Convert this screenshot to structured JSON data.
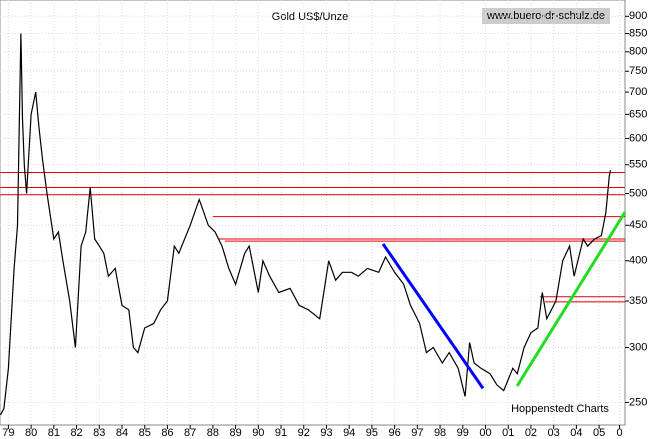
{
  "chart_data": {
    "type": "line",
    "title": "Gold US$/Unze",
    "source": "www.buero-dr-schulz.de",
    "credit": "Hoppenstedt Charts",
    "log_y": true,
    "grid": true,
    "xlim": [
      1979.13,
      2006.64
    ],
    "ylim": [
      232,
      950
    ],
    "xticks": [
      {
        "value": 1979.5,
        "label": "79"
      },
      {
        "value": 1980.5,
        "label": "80"
      },
      {
        "value": 1981.5,
        "label": "81"
      },
      {
        "value": 1982.5,
        "label": "82"
      },
      {
        "value": 1983.5,
        "label": "83"
      },
      {
        "value": 1984.5,
        "label": "84"
      },
      {
        "value": 1985.5,
        "label": "85"
      },
      {
        "value": 1986.5,
        "label": "86"
      },
      {
        "value": 1987.5,
        "label": "87"
      },
      {
        "value": 1988.5,
        "label": "88"
      },
      {
        "value": 1989.5,
        "label": "89"
      },
      {
        "value": 1990.5,
        "label": "90"
      },
      {
        "value": 1991.5,
        "label": "91"
      },
      {
        "value": 1992.5,
        "label": "92"
      },
      {
        "value": 1993.5,
        "label": "93"
      },
      {
        "value": 1994.5,
        "label": "94"
      },
      {
        "value": 1995.5,
        "label": "95"
      },
      {
        "value": 1996.5,
        "label": "96"
      },
      {
        "value": 1997.5,
        "label": "97"
      },
      {
        "value": 1998.5,
        "label": "98"
      },
      {
        "value": 1999.5,
        "label": "99"
      },
      {
        "value": 2000.5,
        "label": "00"
      },
      {
        "value": 2001.5,
        "label": "01"
      },
      {
        "value": 2002.5,
        "label": "02"
      },
      {
        "value": 2003.5,
        "label": "03"
      },
      {
        "value": 2004.5,
        "label": "04"
      },
      {
        "value": 2005.5,
        "label": "05"
      },
      {
        "value": 2006.4,
        "label": "0"
      }
    ],
    "yticks": [
      250,
      300,
      350,
      400,
      450,
      500,
      550,
      600,
      650,
      700,
      750,
      800,
      850,
      900
    ],
    "series": [
      {
        "color": "#000000",
        "x": [
          1979.15,
          1979.3,
          1979.5,
          1979.75,
          1979.9,
          1980.05,
          1980.12,
          1980.2,
          1980.3,
          1980.5,
          1980.7,
          1980.85,
          1981.0,
          1981.2,
          1981.5,
          1981.7,
          1981.9,
          1982.2,
          1982.45,
          1982.7,
          1982.9,
          1983.1,
          1983.3,
          1983.5,
          1983.7,
          1983.9,
          1984.2,
          1984.5,
          1984.8,
          1985.0,
          1985.2,
          1985.5,
          1985.9,
          1986.2,
          1986.5,
          1986.8,
          1987.0,
          1987.5,
          1987.9,
          1988.0,
          1988.3,
          1988.6,
          1988.9,
          1989.2,
          1989.5,
          1989.9,
          1990.1,
          1990.5,
          1990.7,
          1991.0,
          1991.4,
          1991.9,
          1992.3,
          1992.7,
          1993.2,
          1993.6,
          1993.9,
          1994.2,
          1994.6,
          1994.9,
          1995.3,
          1995.8,
          1996.1,
          1996.5,
          1996.9,
          1997.2,
          1997.6,
          1997.9,
          1998.2,
          1998.6,
          1998.9,
          1999.3,
          1999.6,
          1999.8,
          2000.0,
          2000.3,
          2000.7,
          2001.0,
          2001.3,
          2001.7,
          2001.9,
          2002.2,
          2002.5,
          2002.8,
          2003.0,
          2003.2,
          2003.6,
          2003.9,
          2004.2,
          2004.4,
          2004.8,
          2005.0,
          2005.3,
          2005.6,
          2005.8,
          2005.95,
          2006.0
        ],
        "values": [
          240,
          245,
          280,
          390,
          450,
          850,
          640,
          550,
          500,
          650,
          700,
          620,
          560,
          500,
          430,
          440,
          400,
          350,
          300,
          420,
          440,
          510,
          430,
          420,
          410,
          380,
          390,
          345,
          340,
          300,
          295,
          320,
          325,
          340,
          350,
          420,
          410,
          450,
          490,
          480,
          450,
          440,
          420,
          390,
          370,
          410,
          420,
          360,
          400,
          380,
          360,
          365,
          345,
          340,
          330,
          400,
          375,
          385,
          385,
          380,
          390,
          385,
          405,
          385,
          370,
          345,
          325,
          295,
          300,
          285,
          295,
          280,
          255,
          305,
          285,
          280,
          275,
          265,
          260,
          280,
          275,
          300,
          315,
          320,
          360,
          330,
          350,
          400,
          420,
          380,
          430,
          420,
          430,
          435,
          470,
          530,
          540
        ]
      }
    ],
    "hlines": [
      {
        "value": 536,
        "from": 1979.13,
        "color": "#e00000"
      },
      {
        "value": 510,
        "from": 1979.13,
        "color": "#e00000"
      },
      {
        "value": 498,
        "from": 1979.13,
        "color": "#e00000"
      },
      {
        "value": 463,
        "from": 1988.5,
        "color": "#e00000"
      },
      {
        "value": 430,
        "from": 1988.73,
        "color": "#e00000"
      },
      {
        "value": 427,
        "from": 1989.03,
        "color": "#e00000"
      },
      {
        "value": 355,
        "from": 2002.9,
        "color": "#e00000"
      },
      {
        "value": 349,
        "from": 2003.12,
        "color": "#e00000"
      }
    ],
    "trendlines": [
      {
        "x": [
          1995.99,
          2000.39
        ],
        "values": [
          423,
          262
        ],
        "color": "#0000ff"
      },
      {
        "x": [
          2001.89,
          2006.64
        ],
        "values": [
          264,
          470
        ],
        "color": "#22dd22"
      }
    ]
  }
}
